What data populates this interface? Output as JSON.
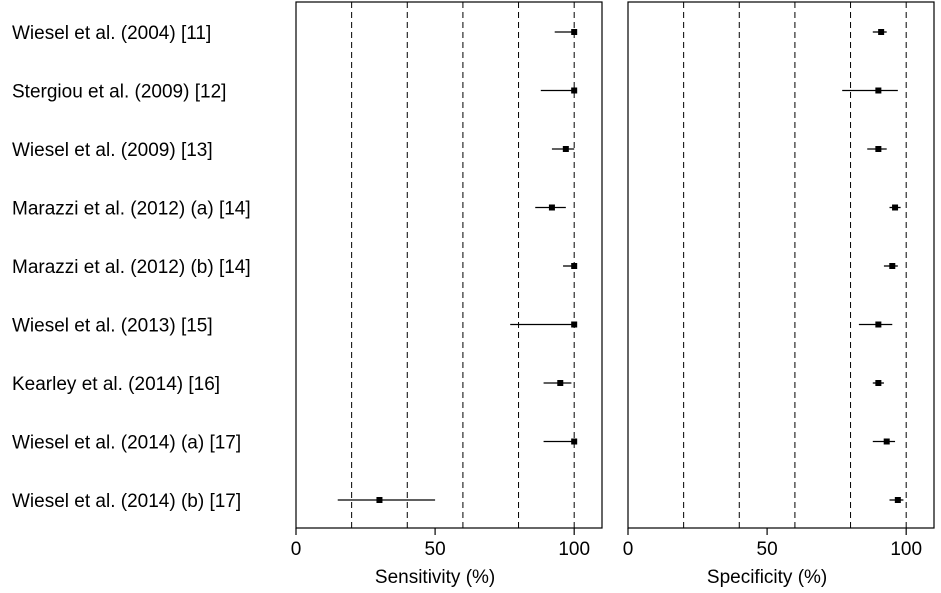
{
  "studies": [
    "Wiesel et al. (2004) [11]",
    "Stergiou et al. (2009) [12]",
    "Wiesel et al. (2009) [13]",
    "Marazzi et al. (2012) (a) [14]",
    "Marazzi et al. (2012) (b) [14]",
    "Wiesel et al. (2013) [15]",
    "Kearley et al. (2014) [16]",
    "Wiesel et al. (2014) (a) [17]",
    "Wiesel et al. (2014) (b) [17]"
  ],
  "chart_data": [
    {
      "type": "scatter",
      "subtype": "forest-plot",
      "title": "",
      "xlabel": "Sensitivity (%)",
      "ylabel": "",
      "xlim": [
        0,
        110
      ],
      "xticks": [
        0,
        50,
        100
      ],
      "xtick_labels": [
        "0",
        "50",
        "100"
      ],
      "reference_lines": [
        20,
        40,
        60,
        80,
        100
      ],
      "grid": false,
      "points": [
        {
          "study": "Wiesel et al. (2004) [11]",
          "estimate": 100,
          "lower": 93,
          "upper": 100
        },
        {
          "study": "Stergiou et al. (2009) [12]",
          "estimate": 100,
          "lower": 88,
          "upper": 100
        },
        {
          "study": "Wiesel et al. (2009) [13]",
          "estimate": 97,
          "lower": 92,
          "upper": 100
        },
        {
          "study": "Marazzi et al. (2012) (a) [14]",
          "estimate": 92,
          "lower": 86,
          "upper": 97
        },
        {
          "study": "Marazzi et al. (2012) (b) [14]",
          "estimate": 100,
          "lower": 96,
          "upper": 100
        },
        {
          "study": "Wiesel et al. (2013) [15]",
          "estimate": 100,
          "lower": 77,
          "upper": 100
        },
        {
          "study": "Kearley et al. (2014) [16]",
          "estimate": 95,
          "lower": 89,
          "upper": 99
        },
        {
          "study": "Wiesel et al. (2014) (a) [17]",
          "estimate": 100,
          "lower": 89,
          "upper": 100
        },
        {
          "study": "Wiesel et al. (2014) (b) [17]",
          "estimate": 30,
          "lower": 15,
          "upper": 50
        }
      ]
    },
    {
      "type": "scatter",
      "subtype": "forest-plot",
      "title": "",
      "xlabel": "Specificity (%)",
      "ylabel": "",
      "xlim": [
        0,
        110
      ],
      "xticks": [
        0,
        50,
        100
      ],
      "xtick_labels": [
        "0",
        "50",
        "100"
      ],
      "reference_lines": [
        20,
        40,
        60,
        80,
        100
      ],
      "grid": false,
      "points": [
        {
          "study": "Wiesel et al. (2004) [11]",
          "estimate": 91,
          "lower": 88,
          "upper": 93
        },
        {
          "study": "Stergiou et al. (2009) [12]",
          "estimate": 90,
          "lower": 77,
          "upper": 97
        },
        {
          "study": "Wiesel et al. (2009) [13]",
          "estimate": 90,
          "lower": 86,
          "upper": 93
        },
        {
          "study": "Marazzi et al. (2012) (a) [14]",
          "estimate": 96,
          "lower": 94,
          "upper": 98
        },
        {
          "study": "Marazzi et al. (2012) (b) [14]",
          "estimate": 95,
          "lower": 92,
          "upper": 97
        },
        {
          "study": "Wiesel et al. (2013) [15]",
          "estimate": 90,
          "lower": 83,
          "upper": 95
        },
        {
          "study": "Kearley et al. (2014) [16]",
          "estimate": 90,
          "lower": 88,
          "upper": 92
        },
        {
          "study": "Wiesel et al. (2014) (a) [17]",
          "estimate": 93,
          "lower": 88,
          "upper": 96
        },
        {
          "study": "Wiesel et al. (2014) (b) [17]",
          "estimate": 97,
          "lower": 94,
          "upper": 99
        }
      ]
    }
  ]
}
